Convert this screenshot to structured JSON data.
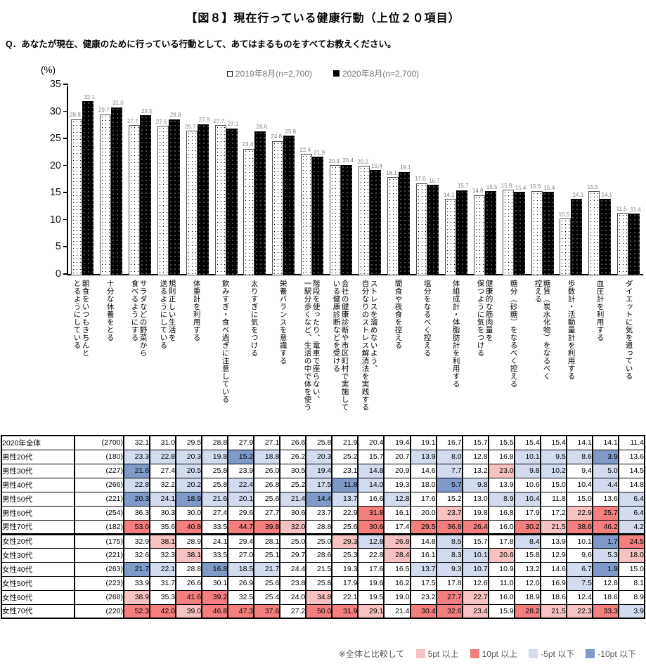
{
  "title": "【図８】現在行っている健康行動（上位２０項目）",
  "question": "Q．あなたが現在、健康のために行っている行動として、あてはまるものをすべてお教えください。",
  "chart_data": {
    "type": "bar",
    "unit_label": "(%)",
    "ylim": [
      0,
      35
    ],
    "yticks": [
      0,
      5,
      10,
      15,
      20,
      25,
      30,
      35
    ],
    "grid": false,
    "legend_position": "top",
    "categories": [
      "朝食をいつもきちんと\nとるようにしている",
      "十分な休養をとる",
      "サラダなどの野菜から\n食べるようにする",
      "規則正しい生活を\n送るようにしている",
      "体重計を利用する",
      "飲みすぎ・食べ過ぎに注意している",
      "太りすぎに気をつける",
      "栄養バランスを意識する",
      "階段を使ったり、電車で座らない、\n一駅分歩くなど、生活の中で体を使う",
      "会社の健康診断や市区町村で実施して\nいる健康診断などを受ける",
      "ストレスを溜めないよう、\n自分なりのストレス解消法を実践する",
      "間食や夜食を控える",
      "塩分をなるべく控える",
      "体組成計・体脂肪計を利用する",
      "健康的な筋肉量を\n保つように気をつける",
      "糖分（砂糖）をなるべく控える",
      "糖質（炭水化物）をなるべく\n控える",
      "歩数計・活動量計を利用する",
      "血圧計を利用する",
      "ダイエットに気を遣っている"
    ],
    "series": [
      {
        "name": "2019年8月(n=2,700)",
        "values": [
          28.8,
          29.7,
          27.7,
          27.6,
          26.7,
          27.7,
          23.4,
          24.8,
          22.4,
          20.3,
          20.2,
          18.1,
          17.0,
          14.1,
          14.8,
          15.8,
          15.6,
          10.5,
          15.5,
          11.5
        ]
      },
      {
        "name": "2020年8月(n=2,700)",
        "values": [
          32.1,
          31.0,
          29.5,
          28.8,
          27.9,
          27.1,
          26.6,
          25.8,
          21.9,
          20.4,
          19.4,
          19.1,
          16.7,
          15.7,
          15.5,
          15.4,
          15.4,
          14.1,
          14.1,
          11.4
        ]
      }
    ]
  },
  "table": {
    "rows": [
      {
        "label": "2020年全体",
        "n": "(2700)",
        "values": [
          32.1,
          31.0,
          29.5,
          28.8,
          27.9,
          27.1,
          26.6,
          25.8,
          21.9,
          20.4,
          19.4,
          19.1,
          16.7,
          15.7,
          15.5,
          15.4,
          15.4,
          14.1,
          14.1,
          11.4
        ]
      },
      {
        "label": "男性20代",
        "n": "(180)",
        "values": [
          23.3,
          22.8,
          20.3,
          19.8,
          15.2,
          18.8,
          26.2,
          20.3,
          25.2,
          15.7,
          20.7,
          13.9,
          8.0,
          12.8,
          16.8,
          10.1,
          9.5,
          8.6,
          3.9,
          13.6
        ]
      },
      {
        "label": "男性30代",
        "n": "(227)",
        "values": [
          21.6,
          27.4,
          20.5,
          25.8,
          23.9,
          26.0,
          30.5,
          19.4,
          23.1,
          14.8,
          20.9,
          14.6,
          7.7,
          13.2,
          23.0,
          9.8,
          10.2,
          9.4,
          5.0,
          14.5
        ]
      },
      {
        "label": "男性40代",
        "n": "(266)",
        "values": [
          22.8,
          32.2,
          20.2,
          25.8,
          22.4,
          26.8,
          25.2,
          17.5,
          11.8,
          14.0,
          19.3,
          18.0,
          5.7,
          9.8,
          13.9,
          10.6,
          15.0,
          10.4,
          4.4,
          14.8
        ]
      },
      {
        "label": "男性50代",
        "n": "(221)",
        "values": [
          20.3,
          24.1,
          18.9,
          21.6,
          20.1,
          25.6,
          21.4,
          14.4,
          13.7,
          16.6,
          12.8,
          17.6,
          15.2,
          13.0,
          8.9,
          10.4,
          11.8,
          15.0,
          13.6,
          6.4
        ]
      },
      {
        "label": "男性60代",
        "n": "(254)",
        "values": [
          36.3,
          30.3,
          30.0,
          27.4,
          29.6,
          27.7,
          30.6,
          23.7,
          22.9,
          31.8,
          16.1,
          20.0,
          23.7,
          19.8,
          16.8,
          17.9,
          17.2,
          22.9,
          25.7,
          6.4
        ]
      },
      {
        "label": "男性70代",
        "n": "(182)",
        "values": [
          53.0,
          35.6,
          40.8,
          33.5,
          44.7,
          39.8,
          32.0,
          28.8,
          25.6,
          30.6,
          17.4,
          29.5,
          36.8,
          26.4,
          16.0,
          30.2,
          21.5,
          38.6,
          46.2,
          4.2
        ]
      },
      {
        "label": "女性20代",
        "n": "(175)",
        "values": [
          32.9,
          38.1,
          28.9,
          24.1,
          29.4,
          28.1,
          25.0,
          25.0,
          29.3,
          12.8,
          26.8,
          14.8,
          8.5,
          15.7,
          17.8,
          8.4,
          13.9,
          10.1,
          1.7,
          24.5
        ]
      },
      {
        "label": "女性30代",
        "n": "(221)",
        "values": [
          32.6,
          32.3,
          38.1,
          33.5,
          27.0,
          25.1,
          29.7,
          28.6,
          25.3,
          22.8,
          28.4,
          16.1,
          8.3,
          10.1,
          20.6,
          15.8,
          12.9,
          9.6,
          5.3,
          18.0
        ]
      },
      {
        "label": "女性40代",
        "n": "(263)",
        "values": [
          21.7,
          22.1,
          28.8,
          16.8,
          18.5,
          21.7,
          24.4,
          21.5,
          19.3,
          17.6,
          16.5,
          13.7,
          9.3,
          10.7,
          10.9,
          13.2,
          14.6,
          6.7,
          1.9,
          15.0
        ]
      },
      {
        "label": "女性50代",
        "n": "(223)",
        "values": [
          33.9,
          31.7,
          26.6,
          30.1,
          26.9,
          25.6,
          23.8,
          25.8,
          17.9,
          19.6,
          16.2,
          17.5,
          17.8,
          12.6,
          11.0,
          12.0,
          16.9,
          7.5,
          12.8,
          8.1
        ]
      },
      {
        "label": "女性60代",
        "n": "(268)",
        "values": [
          38.9,
          35.3,
          41.6,
          39.2,
          32.5,
          25.4,
          24.0,
          34.8,
          22.1,
          19.5,
          19.0,
          23.2,
          27.7,
          22.7,
          16.0,
          18.9,
          18.6,
          12.4,
          18.6,
          8.9
        ]
      },
      {
        "label": "女性70代",
        "n": "(220)",
        "values": [
          52.3,
          42.0,
          39.0,
          46.8,
          47.3,
          37.6,
          27.2,
          50.0,
          31.9,
          29.1,
          21.4,
          30.4,
          32.6,
          23.4,
          15.9,
          28.2,
          21.5,
          22.3,
          33.3,
          3.9
        ]
      }
    ],
    "female_section_start_index": 7
  },
  "footer_legend": {
    "prefix": "※全体と比較して",
    "items": [
      {
        "label": "5pt 以上",
        "color_key": "plus5"
      },
      {
        "label": "10pt 以上",
        "color_key": "plus10"
      },
      {
        "label": "-5pt 以下",
        "color_key": "minus5"
      },
      {
        "label": "-10pt 以下",
        "color_key": "minus10"
      }
    ],
    "thresholds": {
      "plus5": 5,
      "plus10": 10,
      "minus5": -5,
      "minus10": -10
    }
  },
  "colors": {
    "plus5": "#F8C2C2",
    "plus10": "#F47F7F",
    "minus5": "#D3DCEE",
    "minus10": "#7F9AC9",
    "bar_2019": "#FFFFFF",
    "bar_2020": "#000000",
    "muted_text": "#595959"
  }
}
